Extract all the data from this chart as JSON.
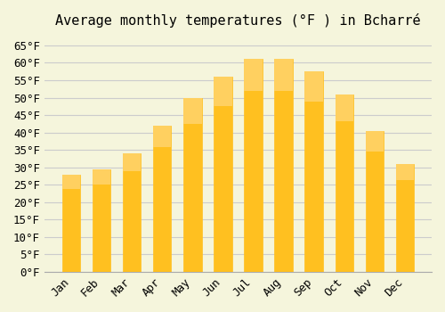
{
  "title": "Average monthly temperatures (°F ) in Bcharré",
  "months": [
    "Jan",
    "Feb",
    "Mar",
    "Apr",
    "May",
    "Jun",
    "Jul",
    "Aug",
    "Sep",
    "Oct",
    "Nov",
    "Dec"
  ],
  "values": [
    28,
    29.5,
    34,
    42,
    50,
    56,
    61,
    61,
    57.5,
    51,
    40.5,
    31
  ],
  "bar_color": "#FFC020",
  "bar_edge_color": "#FFD060",
  "background_color": "#F5F5DC",
  "grid_color": "#CCCCCC",
  "ylim": [
    0,
    68
  ],
  "yticks": [
    0,
    5,
    10,
    15,
    20,
    25,
    30,
    35,
    40,
    45,
    50,
    55,
    60,
    65
  ],
  "title_fontsize": 11,
  "tick_fontsize": 9,
  "font_family": "monospace"
}
